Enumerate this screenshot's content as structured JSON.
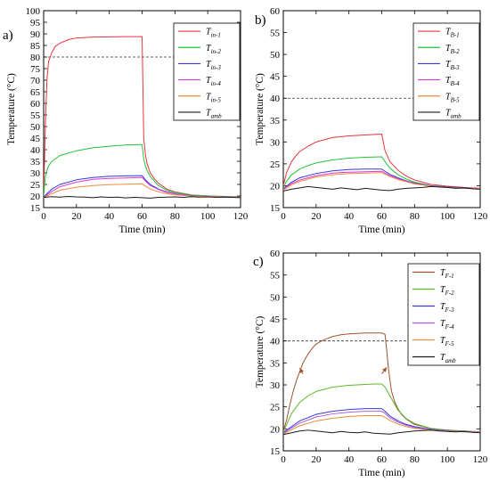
{
  "chart_data": [
    {
      "type": "line",
      "panel_label": "a)",
      "xlabel": "Time (min)",
      "ylabel": "Temperature (°C)",
      "xlim": [
        0,
        120
      ],
      "ylim": [
        15,
        100
      ],
      "xticks": [
        0,
        20,
        40,
        60,
        80,
        100,
        120
      ],
      "yticks": [
        15,
        20,
        25,
        30,
        35,
        40,
        45,
        50,
        55,
        60,
        65,
        70,
        75,
        80,
        85,
        90,
        95,
        100
      ],
      "reference_line": 80,
      "legend_position": "top-right",
      "series": [
        {
          "name_main": "T",
          "name_sub": "in-1",
          "color": "#e8343c",
          "x": [
            0,
            1,
            2,
            3,
            5,
            7,
            10,
            15,
            20,
            30,
            40,
            50,
            59,
            60,
            61,
            62,
            63,
            65,
            68,
            70,
            75,
            80,
            90,
            100,
            110,
            120
          ],
          "y": [
            20,
            50,
            70,
            78,
            82,
            84.5,
            86,
            87.5,
            88.2,
            88.6,
            88.7,
            88.8,
            88.8,
            88.8,
            45,
            38,
            34,
            30,
            27,
            25.5,
            23,
            21.8,
            20.5,
            20,
            19.8,
            19.6
          ]
        },
        {
          "name_main": "T",
          "name_sub": "in-2",
          "color": "#22c33a",
          "x": [
            0,
            1,
            2,
            3,
            5,
            10,
            20,
            30,
            40,
            50,
            59,
            60,
            61,
            62,
            63,
            65,
            68,
            70,
            75,
            80,
            90,
            100,
            110,
            120
          ],
          "y": [
            20,
            28,
            31,
            33,
            35,
            37.5,
            39.5,
            40.8,
            41.5,
            42,
            42.2,
            42.2,
            36,
            33,
            31,
            28.5,
            26,
            24.5,
            22.5,
            21.5,
            20.5,
            20,
            19.8,
            19.6
          ]
        },
        {
          "name_main": "T",
          "name_sub": "in-3",
          "color": "#3a3ad8",
          "x": [
            0,
            2,
            5,
            10,
            20,
            30,
            40,
            50,
            60,
            62,
            65,
            70,
            75,
            80,
            90,
            100,
            110,
            120
          ],
          "y": [
            19.5,
            21,
            23,
            25,
            27,
            28,
            28.5,
            28.7,
            28.8,
            27,
            25,
            23,
            21.8,
            21,
            20.2,
            19.9,
            19.7,
            19.6
          ]
        },
        {
          "name_main": "T",
          "name_sub": "in-4",
          "color": "#d63cd6",
          "x": [
            0,
            2,
            5,
            10,
            20,
            30,
            40,
            50,
            60,
            62,
            65,
            70,
            75,
            80,
            90,
            100,
            110,
            120
          ],
          "y": [
            19.3,
            20.5,
            22,
            24,
            26,
            27.2,
            27.6,
            27.8,
            28,
            26.5,
            24.5,
            22.8,
            21.6,
            20.9,
            20.1,
            19.8,
            19.6,
            19.5
          ]
        },
        {
          "name_main": "T",
          "name_sub": "in-5",
          "color": "#f08a3c",
          "x": [
            0,
            2,
            5,
            10,
            20,
            30,
            40,
            50,
            60,
            62,
            65,
            70,
            75,
            80,
            90,
            100,
            110,
            120
          ],
          "y": [
            19,
            20,
            21,
            22.5,
            23.8,
            24.5,
            24.9,
            25.1,
            25.3,
            24.3,
            23,
            21.8,
            21,
            20.5,
            20,
            19.8,
            19.6,
            19.5
          ]
        },
        {
          "name_main": "T",
          "name_sub": "amb",
          "color": "#1a1a1a",
          "x": [
            0,
            5,
            10,
            15,
            20,
            25,
            30,
            35,
            40,
            45,
            50,
            55,
            60,
            65,
            70,
            75,
            80,
            85,
            90,
            95,
            100,
            105,
            110,
            115,
            120
          ],
          "y": [
            19.4,
            19.7,
            19.5,
            19.8,
            19.6,
            19.5,
            19.3,
            19.6,
            19.4,
            19.5,
            19.2,
            19.4,
            19.3,
            19.1,
            19.4,
            19.5,
            19.6,
            19.4,
            19.7,
            19.5,
            19.6,
            19.4,
            19.5,
            19.4,
            19.3
          ]
        }
      ]
    },
    {
      "type": "line",
      "panel_label": "b)",
      "xlabel": "Time (min)",
      "ylabel": "Temperature (°C)",
      "xlim": [
        0,
        120
      ],
      "ylim": [
        15,
        60
      ],
      "xticks": [
        0,
        20,
        40,
        60,
        80,
        100,
        120
      ],
      "yticks": [
        15,
        20,
        25,
        30,
        35,
        40,
        45,
        50,
        55,
        60
      ],
      "reference_line": 40,
      "legend_position": "top-right",
      "series": [
        {
          "name_main": "T",
          "name_sub": "B-1",
          "color": "#e8343c",
          "x": [
            0,
            2,
            5,
            8,
            10,
            15,
            20,
            30,
            40,
            50,
            55,
            60,
            62,
            65,
            70,
            75,
            80,
            90,
            100,
            110,
            120
          ],
          "y": [
            20,
            23,
            25.5,
            27,
            27.8,
            29,
            30,
            31,
            31.4,
            31.6,
            31.7,
            31.8,
            28,
            25.5,
            23.5,
            22.2,
            21.3,
            20.3,
            19.9,
            19.6,
            19.4
          ]
        },
        {
          "name_main": "T",
          "name_sub": "B-2",
          "color": "#22c33a",
          "x": [
            0,
            2,
            5,
            10,
            15,
            20,
            30,
            40,
            50,
            60,
            62,
            65,
            70,
            75,
            80,
            90,
            100,
            110,
            120
          ],
          "y": [
            19.5,
            21,
            22.5,
            23.8,
            24.6,
            25.2,
            25.9,
            26.3,
            26.5,
            26.6,
            25.5,
            24,
            22.5,
            21.5,
            20.8,
            20,
            19.7,
            19.5,
            19.3
          ]
        },
        {
          "name_main": "T",
          "name_sub": "B-3",
          "color": "#3a3ad8",
          "x": [
            0,
            5,
            10,
            20,
            30,
            40,
            50,
            60,
            62,
            65,
            70,
            75,
            80,
            90,
            100,
            110,
            120
          ],
          "y": [
            19.3,
            20.8,
            21.8,
            22.8,
            23.4,
            23.7,
            23.8,
            23.8,
            23.3,
            22.6,
            21.8,
            21.1,
            20.6,
            20,
            19.7,
            19.5,
            19.3
          ]
        },
        {
          "name_main": "T",
          "name_sub": "B-4",
          "color": "#d63cd6",
          "x": [
            0,
            5,
            10,
            20,
            30,
            40,
            50,
            60,
            62,
            65,
            70,
            75,
            80,
            90,
            100,
            110,
            120
          ],
          "y": [
            19.2,
            20.5,
            21.3,
            22.3,
            22.9,
            23.1,
            23.2,
            23.3,
            22.9,
            22.3,
            21.6,
            21,
            20.5,
            19.9,
            19.6,
            19.4,
            19.3
          ]
        },
        {
          "name_main": "T",
          "name_sub": "B-5",
          "color": "#f08a3c",
          "x": [
            0,
            5,
            10,
            20,
            30,
            40,
            50,
            60,
            62,
            65,
            70,
            75,
            80,
            90,
            100,
            110,
            120
          ],
          "y": [
            19,
            20.2,
            21,
            22,
            22.5,
            22.8,
            22.9,
            23,
            22.6,
            22.1,
            21.4,
            20.9,
            20.4,
            19.9,
            19.6,
            19.4,
            19.3
          ]
        },
        {
          "name_main": "T",
          "name_sub": "amb",
          "color": "#1a1a1a",
          "x": [
            0,
            5,
            10,
            15,
            20,
            25,
            30,
            35,
            40,
            45,
            50,
            55,
            60,
            65,
            70,
            75,
            80,
            85,
            90,
            95,
            100,
            105,
            110,
            115,
            120
          ],
          "y": [
            18.8,
            19.2,
            19.5,
            19.8,
            19.6,
            19.4,
            19.2,
            19.5,
            19.3,
            19.1,
            19.4,
            19.2,
            19,
            18.9,
            19.2,
            19.4,
            19.5,
            19.6,
            19.8,
            19.7,
            19.6,
            19.4,
            19.5,
            19.3,
            19.2
          ]
        }
      ]
    },
    {
      "type": "line",
      "panel_label": "c)",
      "xlabel": "Time (min)",
      "ylabel": "Temperature (°C)",
      "xlim": [
        0,
        120
      ],
      "ylim": [
        15,
        60
      ],
      "xticks": [
        0,
        20,
        40,
        60,
        80,
        100,
        120
      ],
      "yticks": [
        15,
        20,
        25,
        30,
        35,
        40,
        45,
        50,
        55,
        60
      ],
      "reference_line": 40,
      "legend_position": "top-right",
      "annotations": [
        {
          "type": "arrow",
          "from": [
            12,
            32.5
          ],
          "to": [
            10,
            33.8
          ]
        },
        {
          "type": "arrow",
          "from": [
            60,
            32.5
          ],
          "to": [
            63,
            34
          ]
        }
      ],
      "series": [
        {
          "name_main": "T",
          "name_sub": "F-1",
          "color": "#a0522d",
          "x": [
            0,
            2,
            4,
            6,
            8,
            10,
            12,
            15,
            18,
            20,
            25,
            30,
            35,
            40,
            45,
            50,
            55,
            60,
            62,
            63,
            64,
            65,
            66,
            68,
            70,
            72,
            75,
            80,
            90,
            100,
            110,
            120
          ],
          "y": [
            19.5,
            22,
            25.5,
            28.5,
            31,
            33,
            35,
            37,
            38.5,
            39.3,
            40.3,
            41,
            41.4,
            41.6,
            41.7,
            41.8,
            41.8,
            41.8,
            41.5,
            38,
            34,
            31,
            28.5,
            26,
            24.5,
            23.3,
            22.2,
            21,
            20.1,
            19.7,
            19.5,
            19.3
          ]
        },
        {
          "name_main": "T",
          "name_sub": "F-2",
          "color": "#5cb82c",
          "x": [
            0,
            2,
            5,
            10,
            15,
            20,
            30,
            40,
            50,
            55,
            60,
            62,
            65,
            68,
            70,
            75,
            80,
            90,
            100,
            110,
            120
          ],
          "y": [
            19.3,
            21,
            23.5,
            26,
            27.5,
            28.5,
            29.5,
            29.9,
            30.1,
            30.2,
            30.2,
            29.5,
            27.5,
            25.5,
            24.2,
            22.3,
            21.2,
            20.1,
            19.7,
            19.5,
            19.3
          ]
        },
        {
          "name_main": "T",
          "name_sub": "F-3",
          "color": "#3a3ad8",
          "x": [
            0,
            5,
            10,
            20,
            30,
            40,
            50,
            60,
            62,
            65,
            70,
            75,
            80,
            90,
            100,
            110,
            120
          ],
          "y": [
            19.2,
            20.5,
            21.8,
            23.3,
            24,
            24.4,
            24.6,
            24.6,
            24,
            22.9,
            21.8,
            21,
            20.5,
            19.9,
            19.6,
            19.4,
            19.3
          ]
        },
        {
          "name_main": "T",
          "name_sub": "F-4",
          "color": "#b05ee0",
          "x": [
            0,
            5,
            10,
            20,
            30,
            40,
            50,
            60,
            62,
            65,
            70,
            75,
            80,
            90,
            100,
            110,
            120
          ],
          "y": [
            19,
            20.2,
            21.3,
            22.7,
            23.4,
            23.8,
            24,
            24,
            23.5,
            22.5,
            21.5,
            20.8,
            20.3,
            19.8,
            19.5,
            19.4,
            19.3
          ]
        },
        {
          "name_main": "T",
          "name_sub": "F-5",
          "color": "#e0903c",
          "x": [
            0,
            5,
            10,
            20,
            30,
            40,
            50,
            60,
            62,
            65,
            70,
            75,
            80,
            90,
            100,
            110,
            120
          ],
          "y": [
            18.8,
            19.8,
            20.7,
            21.8,
            22.4,
            22.8,
            23,
            23,
            22.6,
            21.9,
            21.1,
            20.5,
            20.1,
            19.7,
            19.5,
            19.3,
            19.2
          ]
        },
        {
          "name_main": "T",
          "name_sub": "amb",
          "color": "#1a1a1a",
          "x": [
            0,
            5,
            10,
            15,
            20,
            25,
            30,
            35,
            40,
            45,
            50,
            55,
            60,
            65,
            70,
            75,
            80,
            85,
            90,
            95,
            100,
            105,
            110,
            115,
            120
          ],
          "y": [
            18.7,
            19.1,
            19.5,
            19.7,
            19.5,
            19.3,
            19.1,
            19.4,
            19.2,
            19.1,
            19.3,
            19,
            18.9,
            18.8,
            19.1,
            19.3,
            19.5,
            19.6,
            19.7,
            19.5,
            19.4,
            19.3,
            19.4,
            19.2,
            19.1
          ]
        }
      ]
    }
  ]
}
